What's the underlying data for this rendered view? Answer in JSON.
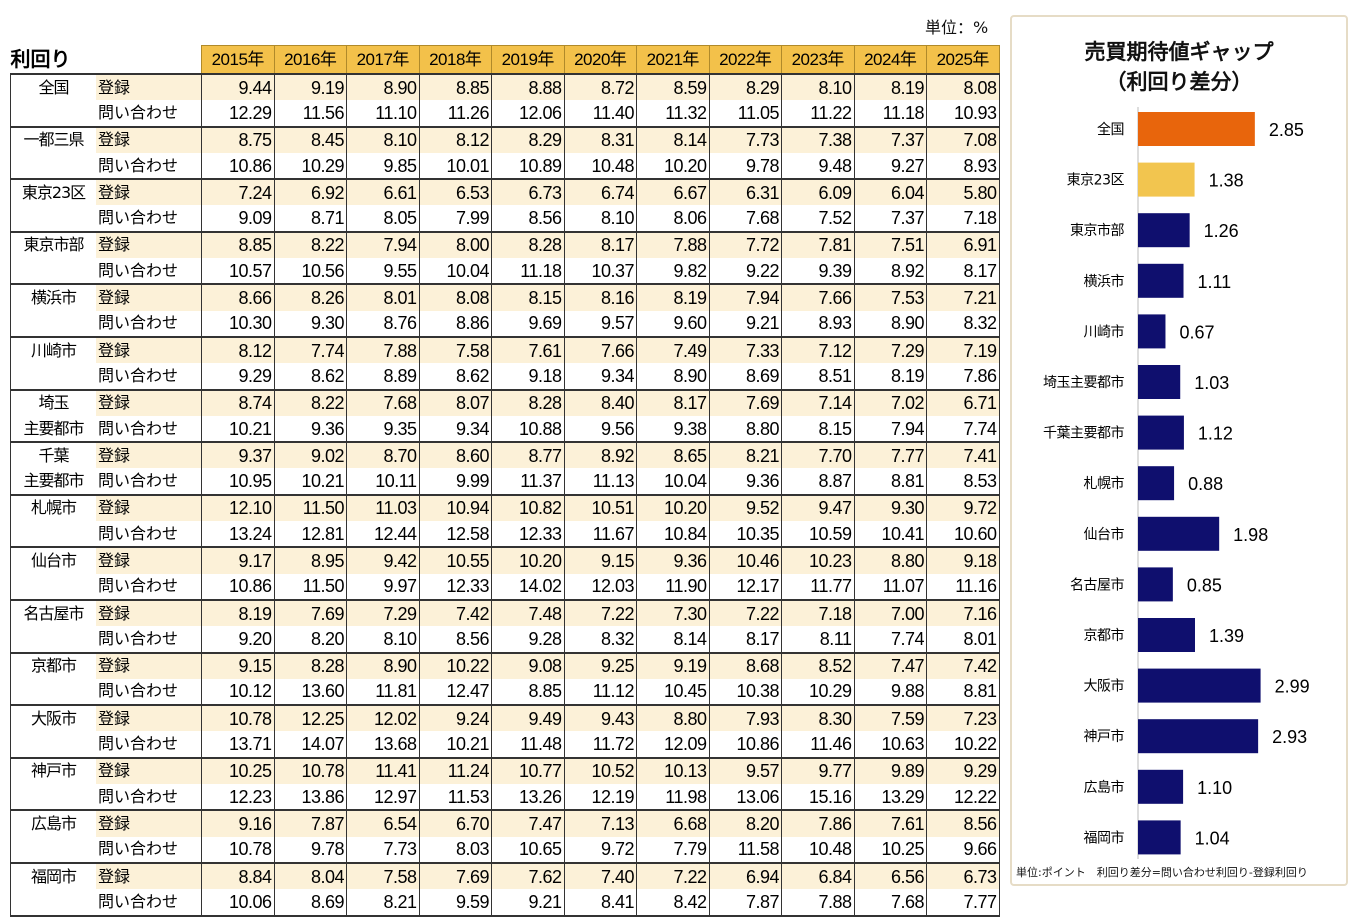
{
  "unit_label": "単位：%",
  "table": {
    "corner_label": "利回り",
    "years": [
      "2015年",
      "2016年",
      "2017年",
      "2018年",
      "2019年",
      "2020年",
      "2021年",
      "2022年",
      "2023年",
      "2024年",
      "2025年"
    ],
    "row_types": {
      "reg": "登録",
      "inq": "問い合わせ"
    },
    "cities": [
      {
        "name_lines": [
          "全国",
          ""
        ],
        "reg": [
          "9.44",
          "9.19",
          "8.90",
          "8.85",
          "8.88",
          "8.72",
          "8.59",
          "8.29",
          "8.10",
          "8.19",
          "8.08"
        ],
        "inq": [
          "12.29",
          "11.56",
          "11.10",
          "11.26",
          "12.06",
          "11.40",
          "11.32",
          "11.05",
          "11.22",
          "11.18",
          "10.93"
        ]
      },
      {
        "name_lines": [
          "一都三県",
          ""
        ],
        "reg": [
          "8.75",
          "8.45",
          "8.10",
          "8.12",
          "8.29",
          "8.31",
          "8.14",
          "7.73",
          "7.38",
          "7.37",
          "7.08"
        ],
        "inq": [
          "10.86",
          "10.29",
          "9.85",
          "10.01",
          "10.89",
          "10.48",
          "10.20",
          "9.78",
          "9.48",
          "9.27",
          "8.93"
        ]
      },
      {
        "name_lines": [
          "東京23区",
          ""
        ],
        "reg": [
          "7.24",
          "6.92",
          "6.61",
          "6.53",
          "6.73",
          "6.74",
          "6.67",
          "6.31",
          "6.09",
          "6.04",
          "5.80"
        ],
        "inq": [
          "9.09",
          "8.71",
          "8.05",
          "7.99",
          "8.56",
          "8.10",
          "8.06",
          "7.68",
          "7.52",
          "7.37",
          "7.18"
        ]
      },
      {
        "name_lines": [
          "東京市部",
          ""
        ],
        "reg": [
          "8.85",
          "8.22",
          "7.94",
          "8.00",
          "8.28",
          "8.17",
          "7.88",
          "7.72",
          "7.81",
          "7.51",
          "6.91"
        ],
        "inq": [
          "10.57",
          "10.56",
          "9.55",
          "10.04",
          "11.18",
          "10.37",
          "9.82",
          "9.22",
          "9.39",
          "8.92",
          "8.17"
        ]
      },
      {
        "name_lines": [
          "横浜市",
          ""
        ],
        "reg": [
          "8.66",
          "8.26",
          "8.01",
          "8.08",
          "8.15",
          "8.16",
          "8.19",
          "7.94",
          "7.66",
          "7.53",
          "7.21"
        ],
        "inq": [
          "10.30",
          "9.30",
          "8.76",
          "8.86",
          "9.69",
          "9.57",
          "9.60",
          "9.21",
          "8.93",
          "8.90",
          "8.32"
        ]
      },
      {
        "name_lines": [
          "川崎市",
          ""
        ],
        "reg": [
          "8.12",
          "7.74",
          "7.88",
          "7.58",
          "7.61",
          "7.66",
          "7.49",
          "7.33",
          "7.12",
          "7.29",
          "7.19"
        ],
        "inq": [
          "9.29",
          "8.62",
          "8.89",
          "8.62",
          "9.18",
          "9.34",
          "8.90",
          "8.69",
          "8.51",
          "8.19",
          "7.86"
        ]
      },
      {
        "name_lines": [
          "埼玉",
          "主要都市"
        ],
        "reg": [
          "8.74",
          "8.22",
          "7.68",
          "8.07",
          "8.28",
          "8.40",
          "8.17",
          "7.69",
          "7.14",
          "7.02",
          "6.71"
        ],
        "inq": [
          "10.21",
          "9.36",
          "9.35",
          "9.34",
          "10.88",
          "9.56",
          "9.38",
          "8.80",
          "8.15",
          "7.94",
          "7.74"
        ]
      },
      {
        "name_lines": [
          "千葉",
          "主要都市"
        ],
        "reg": [
          "9.37",
          "9.02",
          "8.70",
          "8.60",
          "8.77",
          "8.92",
          "8.65",
          "8.21",
          "7.70",
          "7.77",
          "7.41"
        ],
        "inq": [
          "10.95",
          "10.21",
          "10.11",
          "9.99",
          "11.37",
          "11.13",
          "10.04",
          "9.36",
          "8.87",
          "8.81",
          "8.53"
        ]
      },
      {
        "name_lines": [
          "札幌市",
          ""
        ],
        "reg": [
          "12.10",
          "11.50",
          "11.03",
          "10.94",
          "10.82",
          "10.51",
          "10.20",
          "9.52",
          "9.47",
          "9.30",
          "9.72"
        ],
        "inq": [
          "13.24",
          "12.81",
          "12.44",
          "12.58",
          "12.33",
          "11.67",
          "10.84",
          "10.35",
          "10.59",
          "10.41",
          "10.60"
        ]
      },
      {
        "name_lines": [
          "仙台市",
          ""
        ],
        "reg": [
          "9.17",
          "8.95",
          "9.42",
          "10.55",
          "10.20",
          "9.15",
          "9.36",
          "10.46",
          "10.23",
          "8.80",
          "9.18"
        ],
        "inq": [
          "10.86",
          "11.50",
          "9.97",
          "12.33",
          "14.02",
          "12.03",
          "11.90",
          "12.17",
          "11.77",
          "11.07",
          "11.16"
        ]
      },
      {
        "name_lines": [
          "名古屋市",
          ""
        ],
        "reg": [
          "8.19",
          "7.69",
          "7.29",
          "7.42",
          "7.48",
          "7.22",
          "7.30",
          "7.22",
          "7.18",
          "7.00",
          "7.16"
        ],
        "inq": [
          "9.20",
          "8.20",
          "8.10",
          "8.56",
          "9.28",
          "8.32",
          "8.14",
          "8.17",
          "8.11",
          "7.74",
          "8.01"
        ]
      },
      {
        "name_lines": [
          "京都市",
          ""
        ],
        "reg": [
          "9.15",
          "8.28",
          "8.90",
          "10.22",
          "9.08",
          "9.25",
          "9.19",
          "8.68",
          "8.52",
          "7.47",
          "7.42"
        ],
        "inq": [
          "10.12",
          "13.60",
          "11.81",
          "12.47",
          "8.85",
          "11.12",
          "10.45",
          "10.38",
          "10.29",
          "9.88",
          "8.81"
        ]
      },
      {
        "name_lines": [
          "大阪市",
          ""
        ],
        "reg": [
          "10.78",
          "12.25",
          "12.02",
          "9.24",
          "9.49",
          "9.43",
          "8.80",
          "7.93",
          "8.30",
          "7.59",
          "7.23"
        ],
        "inq": [
          "13.71",
          "14.07",
          "13.68",
          "10.21",
          "11.48",
          "11.72",
          "12.09",
          "10.86",
          "11.46",
          "10.63",
          "10.22"
        ]
      },
      {
        "name_lines": [
          "神戸市",
          ""
        ],
        "reg": [
          "10.25",
          "10.78",
          "11.41",
          "11.24",
          "10.77",
          "10.52",
          "10.13",
          "9.57",
          "9.77",
          "9.89",
          "9.29"
        ],
        "inq": [
          "12.23",
          "13.86",
          "12.97",
          "11.53",
          "13.26",
          "12.19",
          "11.98",
          "13.06",
          "15.16",
          "13.29",
          "12.22"
        ]
      },
      {
        "name_lines": [
          "広島市",
          ""
        ],
        "reg": [
          "9.16",
          "7.87",
          "6.54",
          "6.70",
          "7.47",
          "7.13",
          "6.68",
          "8.20",
          "7.86",
          "7.61",
          "8.56"
        ],
        "inq": [
          "10.78",
          "9.78",
          "7.73",
          "8.03",
          "10.65",
          "9.72",
          "7.79",
          "11.58",
          "10.48",
          "10.25",
          "9.66"
        ]
      },
      {
        "name_lines": [
          "福岡市",
          ""
        ],
        "reg": [
          "8.84",
          "8.04",
          "7.58",
          "7.69",
          "7.62",
          "7.40",
          "7.22",
          "6.94",
          "6.84",
          "6.56",
          "6.73"
        ],
        "inq": [
          "10.06",
          "8.69",
          "8.21",
          "9.59",
          "9.21",
          "8.41",
          "8.42",
          "7.87",
          "7.88",
          "7.68",
          "7.77"
        ]
      }
    ]
  },
  "chart_data": {
    "type": "bar",
    "orientation": "horizontal",
    "title_lines": [
      "売買期待値ギャップ",
      "（利回り差分）"
    ],
    "categories": [
      "全国",
      "東京23区",
      "東京市部",
      "横浜市",
      "川崎市",
      "埼玉主要都市",
      "千葉主要都市",
      "札幌市",
      "仙台市",
      "名古屋市",
      "京都市",
      "大阪市",
      "神戸市",
      "広島市",
      "福岡市"
    ],
    "values": [
      2.85,
      1.38,
      1.26,
      1.11,
      0.67,
      1.03,
      1.12,
      0.88,
      1.98,
      0.85,
      1.39,
      2.99,
      2.93,
      1.1,
      1.04
    ],
    "value_labels": [
      "2.85",
      "1.38",
      "1.26",
      "1.11",
      "0.67",
      "1.03",
      "1.12",
      "0.88",
      "1.98",
      "0.85",
      "1.39",
      "2.99",
      "2.93",
      "1.10",
      "1.04"
    ],
    "colors": [
      "#E8650C",
      "#F2C54F",
      "#0F0F6E",
      "#0F0F6E",
      "#0F0F6E",
      "#0F0F6E",
      "#0F0F6E",
      "#0F0F6E",
      "#0F0F6E",
      "#0F0F6E",
      "#0F0F6E",
      "#0F0F6E",
      "#0F0F6E",
      "#0F0F6E",
      "#0F0F6E"
    ],
    "xlim": [
      0,
      3.2
    ],
    "grid": false,
    "legend": "none",
    "footnote": "単位:ポイント　利回り差分=問い合わせ利回り-登録利回り"
  }
}
